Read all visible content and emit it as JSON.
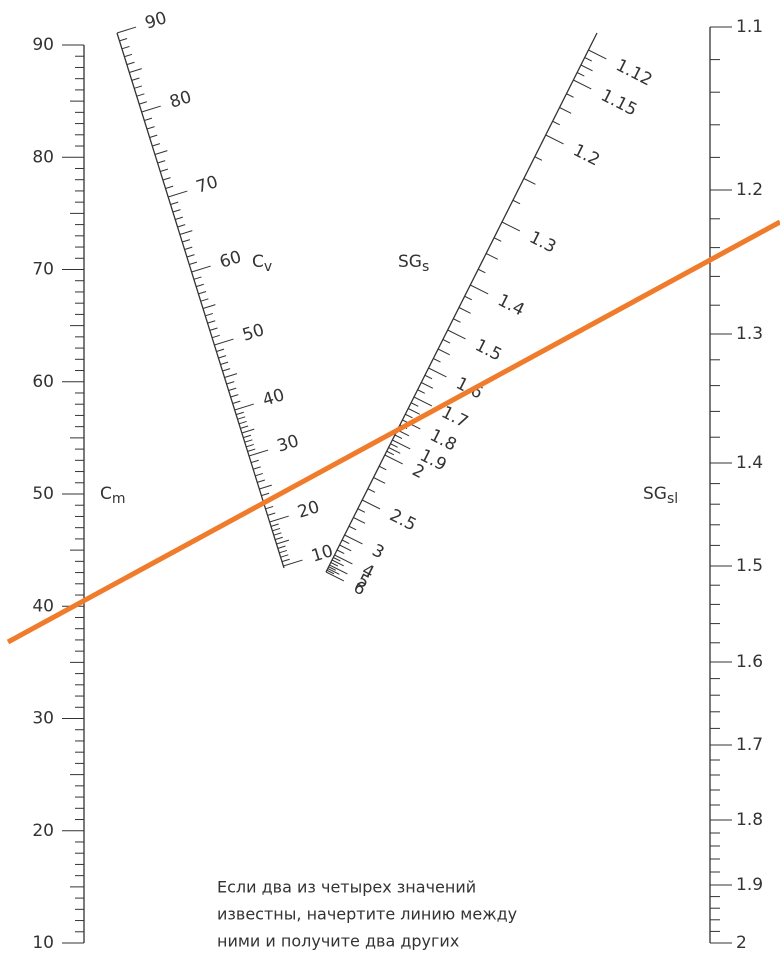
{
  "scales": [
    {
      "name": "C",
      "subscript": "m",
      "ticks": [
        10,
        20,
        30,
        40,
        50,
        60,
        70,
        80,
        90
      ]
    },
    {
      "name": "C",
      "subscript": "v",
      "ticks": [
        10,
        20,
        30,
        40,
        50,
        60,
        70,
        80,
        90
      ]
    },
    {
      "name": "SG",
      "subscript": "s",
      "ticks": [
        "6",
        "5",
        "4",
        "3",
        "2.5",
        "2",
        "1.9",
        "1.8",
        "1.7",
        "1.6",
        "1.5",
        "1.4",
        "1.3",
        "1.2",
        "1.15",
        "1.12"
      ]
    },
    {
      "name": "SG",
      "subscript": "sl",
      "ticks": [
        "1.1",
        "1.2",
        "1.3",
        "1.4",
        "1.5",
        "1.6",
        "1.7",
        "1.8",
        "1.9",
        "2"
      ]
    }
  ],
  "note": [
    "Если два из четырех значений",
    "известны, начертите линию между",
    "ними и получите два других"
  ]
}
